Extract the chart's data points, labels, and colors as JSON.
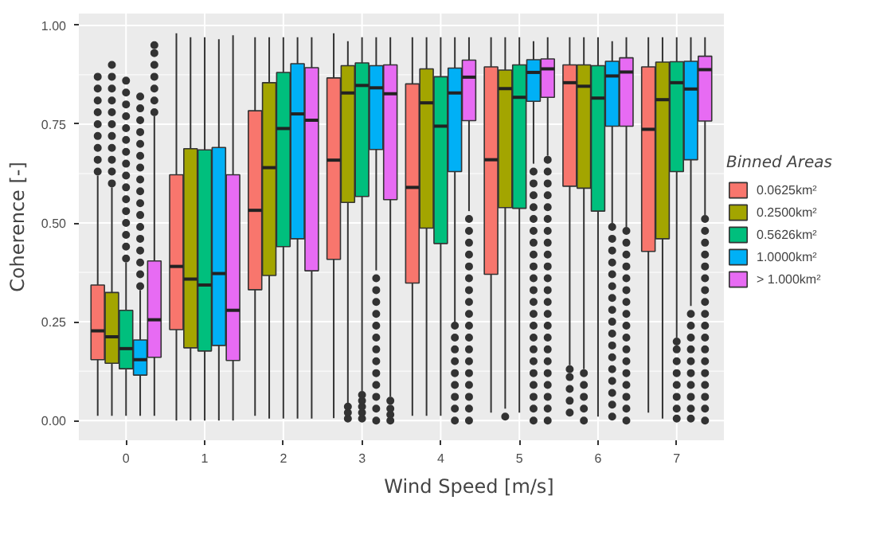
{
  "chart_data": {
    "type": "box",
    "xlabel": "Wind Speed [m/s]",
    "ylabel": "Coherence [-]",
    "legend_title": "Binned Areas",
    "categories": [
      "0",
      "1",
      "2",
      "3",
      "4",
      "5",
      "6",
      "7"
    ],
    "ylim": [
      -0.05,
      1.03
    ],
    "yticks": [
      {
        "value": 0,
        "label": "0.00"
      },
      {
        "value": 0.25,
        "label": "0.25"
      },
      {
        "value": 0.5,
        "label": "0.50"
      },
      {
        "value": 0.75,
        "label": "0.75"
      },
      {
        "value": 1,
        "label": "1.00"
      }
    ],
    "grid": true,
    "legend": "right",
    "series": [
      {
        "name": "0.0625km²",
        "color": "#f8766d",
        "boxes": [
          {
            "low": 0.012,
            "q1": 0.154,
            "median": 0.227,
            "q3": 0.343,
            "high": 0.62,
            "outliers": [
              0.63,
              0.66,
              0.69,
              0.72,
              0.75,
              0.78,
              0.81,
              0.84,
              0.87
            ]
          },
          {
            "low": 0,
            "q1": 0.23,
            "median": 0.39,
            "q3": 0.622,
            "high": 0.98
          },
          {
            "low": 0.012,
            "q1": 0.331,
            "median": 0.532,
            "q3": 0.784,
            "high": 0.97
          },
          {
            "low": 0.006,
            "q1": 0.408,
            "median": 0.659,
            "q3": 0.867,
            "high": 0.98
          },
          {
            "low": 0.012,
            "q1": 0.348,
            "median": 0.59,
            "q3": 0.852,
            "high": 0.97
          },
          {
            "low": 0.02,
            "q1": 0.37,
            "median": 0.66,
            "q3": 0.895,
            "high": 0.97
          },
          {
            "low": 0.14,
            "q1": 0.593,
            "median": 0.855,
            "q3": 0.9,
            "high": 0.97,
            "outliers": [
              0.02,
              0.05,
              0.08,
              0.11,
              0.13
            ]
          },
          {
            "low": 0.02,
            "q1": 0.428,
            "median": 0.737,
            "q3": 0.895,
            "high": 0.97
          }
        ]
      },
      {
        "name": "0.2500km²",
        "color": "#a3a500",
        "boxes": [
          {
            "low": 0.012,
            "q1": 0.145,
            "median": 0.212,
            "q3": 0.324,
            "high": 0.59,
            "outliers": [
              0.6,
              0.63,
              0.66,
              0.69,
              0.72,
              0.75,
              0.78,
              0.81,
              0.84,
              0.87,
              0.9
            ]
          },
          {
            "low": 0,
            "q1": 0.184,
            "median": 0.358,
            "q3": 0.688,
            "high": 0.97
          },
          {
            "low": 0.005,
            "q1": 0.367,
            "median": 0.64,
            "q3": 0.855,
            "high": 0.97
          },
          {
            "low": 0.04,
            "q1": 0.552,
            "median": 0.829,
            "q3": 0.898,
            "high": 0.96,
            "outliers": [
              0.005,
              0.02,
              0.035
            ]
          },
          {
            "low": 0.012,
            "q1": 0.487,
            "median": 0.804,
            "q3": 0.89,
            "high": 0.97
          },
          {
            "low": 0.03,
            "q1": 0.539,
            "median": 0.84,
            "q3": 0.887,
            "high": 0.97,
            "outliers": [
              0.01
            ]
          },
          {
            "low": 0.13,
            "q1": 0.588,
            "median": 0.846,
            "q3": 0.9,
            "high": 0.97,
            "outliers": [
              0,
              0.03,
              0.06,
              0.09,
              0.12
            ]
          },
          {
            "low": 0.005,
            "q1": 0.46,
            "median": 0.812,
            "q3": 0.907,
            "high": 0.97
          }
        ]
      },
      {
        "name": "0.5626km²",
        "color": "#00bf7d",
        "boxes": [
          {
            "low": 0.012,
            "q1": 0.131,
            "median": 0.182,
            "q3": 0.279,
            "high": 0.4,
            "outliers": [
              0.41,
              0.44,
              0.47,
              0.5,
              0.53,
              0.56,
              0.59,
              0.62,
              0.65,
              0.68,
              0.71,
              0.74,
              0.77,
              0.8,
              0.83,
              0.86
            ]
          },
          {
            "low": 0,
            "q1": 0.176,
            "median": 0.343,
            "q3": 0.685,
            "high": 0.97
          },
          {
            "low": 0.005,
            "q1": 0.44,
            "median": 0.739,
            "q3": 0.881,
            "high": 0.97
          },
          {
            "low": 0.075,
            "q1": 0.567,
            "median": 0.848,
            "q3": 0.905,
            "high": 0.97,
            "outliers": [
              0.005,
              0.02,
              0.035,
              0.05,
              0.065
            ]
          },
          {
            "low": 0.012,
            "q1": 0.448,
            "median": 0.745,
            "q3": 0.87,
            "high": 0.97
          },
          {
            "low": 0.02,
            "q1": 0.537,
            "median": 0.818,
            "q3": 0.9,
            "high": 0.97
          },
          {
            "low": 0.01,
            "q1": 0.53,
            "median": 0.816,
            "q3": 0.898,
            "high": 0.97
          },
          {
            "low": 0.21,
            "q1": 0.63,
            "median": 0.855,
            "q3": 0.908,
            "high": 0.97,
            "outliers": [
              0.005,
              0.03,
              0.06,
              0.09,
              0.12,
              0.15,
              0.18,
              0.2
            ]
          }
        ]
      },
      {
        "name": "1.0000km²",
        "color": "#00b0f6",
        "boxes": [
          {
            "low": 0.012,
            "q1": 0.115,
            "median": 0.154,
            "q3": 0.204,
            "high": 0.33,
            "outliers": [
              0.34,
              0.37,
              0.4,
              0.43,
              0.46,
              0.49,
              0.52,
              0.55,
              0.58,
              0.61,
              0.64,
              0.67,
              0.7,
              0.73,
              0.76,
              0.79,
              0.82
            ]
          },
          {
            "low": 0,
            "q1": 0.19,
            "median": 0.372,
            "q3": 0.691,
            "high": 0.965
          },
          {
            "low": 0.005,
            "q1": 0.46,
            "median": 0.776,
            "q3": 0.903,
            "high": 0.97
          },
          {
            "low": 0.38,
            "q1": 0.686,
            "median": 0.842,
            "q3": 0.898,
            "high": 0.97,
            "outliers": [
              0,
              0.03,
              0.06,
              0.09,
              0.12,
              0.15,
              0.18,
              0.21,
              0.24,
              0.27,
              0.3,
              0.33,
              0.36
            ]
          },
          {
            "low": 0.25,
            "q1": 0.63,
            "median": 0.829,
            "q3": 0.892,
            "high": 0.97,
            "outliers": [
              0,
              0.03,
              0.06,
              0.09,
              0.12,
              0.15,
              0.18,
              0.21,
              0.24
            ]
          },
          {
            "low": 0.65,
            "q1": 0.808,
            "median": 0.881,
            "q3": 0.913,
            "high": 0.96,
            "outliers": [
              0,
              0.03,
              0.06,
              0.09,
              0.12,
              0.15,
              0.18,
              0.21,
              0.24,
              0.27,
              0.3,
              0.33,
              0.36,
              0.39,
              0.42,
              0.45,
              0.48,
              0.51,
              0.54,
              0.57,
              0.6,
              0.63
            ]
          },
          {
            "low": 0.5,
            "q1": 0.745,
            "median": 0.872,
            "q3": 0.909,
            "high": 0.96,
            "outliers": [
              0.01,
              0.04,
              0.07,
              0.1,
              0.13,
              0.16,
              0.19,
              0.22,
              0.25,
              0.28,
              0.31,
              0.34,
              0.37,
              0.4,
              0.43,
              0.46,
              0.49
            ]
          },
          {
            "low": 0.29,
            "q1": 0.66,
            "median": 0.839,
            "q3": 0.909,
            "high": 0.97,
            "outliers": [
              0.005,
              0.03,
              0.06,
              0.09,
              0.12,
              0.15,
              0.18,
              0.21,
              0.24,
              0.27
            ]
          }
        ]
      },
      {
        "name": "> 1.000km²",
        "color": "#e76bf3",
        "boxes": [
          {
            "low": 0.012,
            "q1": 0.16,
            "median": 0.255,
            "q3": 0.404,
            "high": 0.77,
            "outliers": [
              0.78,
              0.81,
              0.84,
              0.87,
              0.9,
              0.93,
              0.95
            ]
          },
          {
            "low": 0,
            "q1": 0.152,
            "median": 0.279,
            "q3": 0.622,
            "high": 0.975
          },
          {
            "low": 0.005,
            "q1": 0.379,
            "median": 0.76,
            "q3": 0.893,
            "high": 0.97
          },
          {
            "low": 0.06,
            "q1": 0.559,
            "median": 0.827,
            "q3": 0.9,
            "high": 0.97,
            "outliers": [
              0,
              0.015,
              0.03,
              0.05
            ]
          },
          {
            "low": 0.53,
            "q1": 0.759,
            "median": 0.869,
            "q3": 0.912,
            "high": 0.97,
            "outliers": [
              0,
              0.03,
              0.06,
              0.09,
              0.12,
              0.15,
              0.18,
              0.21,
              0.24,
              0.27,
              0.3,
              0.33,
              0.36,
              0.39,
              0.42,
              0.45,
              0.48,
              0.51
            ]
          },
          {
            "low": 0.67,
            "q1": 0.818,
            "median": 0.89,
            "q3": 0.915,
            "high": 0.97,
            "outliers": [
              0,
              0.03,
              0.06,
              0.09,
              0.12,
              0.15,
              0.18,
              0.21,
              0.24,
              0.27,
              0.3,
              0.33,
              0.36,
              0.39,
              0.42,
              0.45,
              0.48,
              0.51,
              0.54,
              0.57,
              0.6,
              0.63,
              0.66
            ]
          },
          {
            "low": 0.49,
            "q1": 0.745,
            "median": 0.882,
            "q3": 0.918,
            "high": 0.97,
            "outliers": [
              0,
              0.03,
              0.06,
              0.09,
              0.12,
              0.15,
              0.18,
              0.21,
              0.24,
              0.27,
              0.3,
              0.33,
              0.36,
              0.39,
              0.42,
              0.45,
              0.48
            ]
          },
          {
            "low": 0.52,
            "q1": 0.758,
            "median": 0.888,
            "q3": 0.922,
            "high": 0.97,
            "outliers": [
              0,
              0.03,
              0.06,
              0.09,
              0.12,
              0.15,
              0.18,
              0.21,
              0.24,
              0.27,
              0.3,
              0.33,
              0.36,
              0.39,
              0.42,
              0.45,
              0.48,
              0.51
            ]
          }
        ]
      }
    ]
  }
}
